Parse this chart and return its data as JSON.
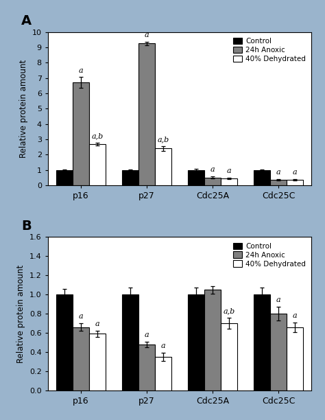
{
  "panel_A": {
    "categories": [
      "p16",
      "p27",
      "Cdc25A",
      "Cdc25C"
    ],
    "control": [
      1.0,
      1.0,
      1.0,
      1.0
    ],
    "anoxic": [
      6.7,
      9.25,
      0.5,
      0.35
    ],
    "dehydrated": [
      2.7,
      2.4,
      0.45,
      0.35
    ],
    "control_err": [
      0.05,
      0.05,
      0.06,
      0.05
    ],
    "anoxic_err": [
      0.35,
      0.12,
      0.07,
      0.04
    ],
    "dehydrated_err": [
      0.08,
      0.14,
      0.05,
      0.04
    ],
    "ylim": [
      0,
      10
    ],
    "yticks": [
      0,
      1,
      2,
      3,
      4,
      5,
      6,
      7,
      8,
      9,
      10
    ],
    "ylabel": "Relative protein amount",
    "panel_label": "A",
    "anoxic_labels": [
      "a",
      "a",
      "a",
      "a"
    ],
    "dehydrated_labels": [
      "a,b",
      "a,b",
      "a",
      "a"
    ]
  },
  "panel_B": {
    "categories": [
      "p16",
      "p27",
      "Cdc25A",
      "Cdc25C"
    ],
    "control": [
      1.0,
      1.0,
      1.0,
      1.0
    ],
    "anoxic": [
      0.66,
      0.48,
      1.05,
      0.8
    ],
    "dehydrated": [
      0.59,
      0.35,
      0.7,
      0.66
    ],
    "control_err": [
      0.06,
      0.07,
      0.07,
      0.07
    ],
    "anoxic_err": [
      0.04,
      0.03,
      0.04,
      0.07
    ],
    "dehydrated_err": [
      0.03,
      0.04,
      0.06,
      0.05
    ],
    "ylim": [
      0,
      1.6
    ],
    "yticks": [
      0.0,
      0.2,
      0.4,
      0.6,
      0.8,
      1.0,
      1.2,
      1.4,
      1.6
    ],
    "ylabel": "Relative protein amount",
    "panel_label": "B",
    "anoxic_labels": [
      "a",
      "a",
      "",
      "a"
    ],
    "dehydrated_labels": [
      "a",
      "a",
      "a,b",
      "a"
    ]
  },
  "colors": {
    "control": "#000000",
    "anoxic": "#808080",
    "dehydrated": "#ffffff"
  },
  "legend": [
    "Control",
    "24h Anoxic",
    "40% Dehydrated"
  ],
  "bar_width": 0.25,
  "fig_background": "#9ab4cc",
  "axes_background": "#ffffff"
}
